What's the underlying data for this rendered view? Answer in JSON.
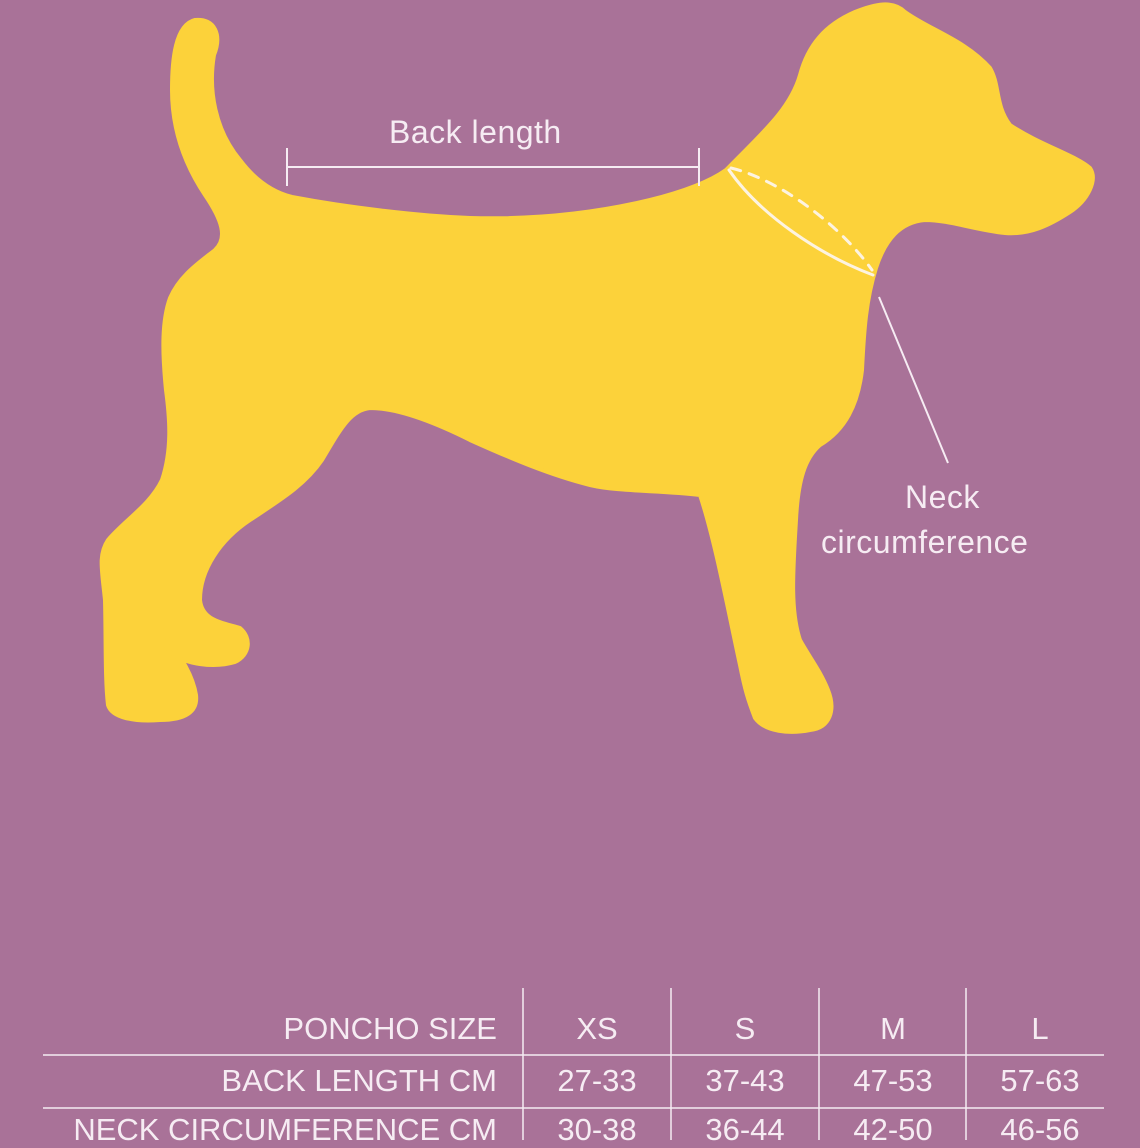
{
  "colors": {
    "background": "#a97298",
    "dog": "#fcd23a",
    "lines": "#f6ecf3"
  },
  "illustration": {
    "subject": "dog-silhouette",
    "back_length_label": "Back length",
    "neck_label_line1": "Neck",
    "neck_label_line2": "circumference"
  },
  "size_table": {
    "header_label": "PONCHO SIZE",
    "sizes": [
      "XS",
      "S",
      "M",
      "L"
    ],
    "rows": [
      {
        "label": "BACK LENGTH CM",
        "values": [
          "27-33",
          "37-43",
          "47-53",
          "57-63"
        ]
      },
      {
        "label": "NECK CIRCUMFERENCE CM",
        "values": [
          "30-38",
          "36-44",
          "42-50",
          "46-56"
        ]
      }
    ]
  }
}
